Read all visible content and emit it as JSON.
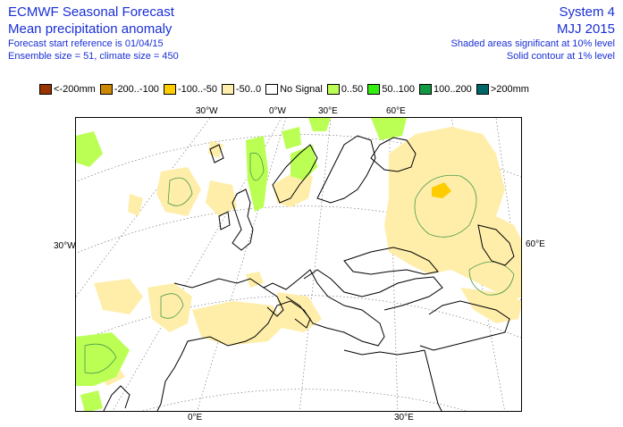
{
  "header": {
    "title": "ECMWF Seasonal Forecast",
    "subtitle": "Mean precipitation anomaly",
    "start_reference": "Forecast start reference is 01/04/15",
    "ensemble": "Ensemble size = 51, climate size = 450",
    "system": "System 4",
    "period": "MJJ 2015",
    "significance_note": "Shaded areas significant at 10% level",
    "contour_note": "Solid contour at 1% level"
  },
  "legend": [
    {
      "label": "<-200mm",
      "color": "#993300"
    },
    {
      "label": "-200..-100",
      "color": "#cc8800"
    },
    {
      "label": "-100..-50",
      "color": "#ffcc00"
    },
    {
      "label": "-50..0",
      "color": "#ffeeaa"
    },
    {
      "label": "No Signal",
      "color": "#ffffff"
    },
    {
      "label": "0..50",
      "color": "#bbff55"
    },
    {
      "label": "50..100",
      "color": "#33ee11"
    },
    {
      "label": "100..200",
      "color": "#119944"
    },
    {
      "label": ">200mm",
      "color": "#006666"
    }
  ],
  "ticks": {
    "top": [
      "30°W",
      "0°W",
      "30°E",
      "60°E"
    ],
    "left": [
      "30°W"
    ],
    "right": [
      "60°E"
    ],
    "bottom": [
      "0°E",
      "30°E"
    ]
  },
  "colors": {
    "text": "#1a2fd6",
    "coast": "#000000",
    "grid": "#666666",
    "contour": "#4a9a4a"
  }
}
